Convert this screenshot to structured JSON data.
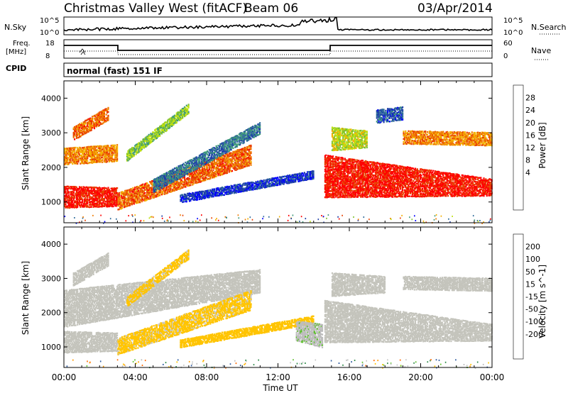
{
  "header": {
    "title": "Christmas Valley West (fitACF)",
    "beam": "Beam 06",
    "date": "03/Apr/2014"
  },
  "status_panels": {
    "nsky_label": "N.Sky",
    "nsky_ticks": [
      "10^5",
      "10^0"
    ],
    "nsky_right_ticks": [
      "10^5",
      "10^0"
    ],
    "nsearch_label": "N.Search",
    "freq_label": [
      "Freq.",
      "[MHz]"
    ],
    "freq_ticks": [
      "18",
      "8"
    ],
    "nave_ticks": [
      "60",
      "0"
    ],
    "nave_label": "Nave",
    "cpid_label": "CPID",
    "cpid_text": "normal (fast) 151 IF"
  },
  "colors": {
    "power_scale": [
      "#0000ff",
      "#1f3fa8",
      "#2f6b9b",
      "#3f9a7a",
      "#7fc22f",
      "#bfe00f",
      "#f4b000",
      "#f07a00",
      "#e84000",
      "#ff0000"
    ],
    "velocity_scale": [
      "#ff0000",
      "#ff6a00",
      "#ff9a00",
      "#ffc400",
      "#c8c8c8",
      "#bdbdbd",
      "#60c030",
      "#2f8a4a",
      "#2c5aa0",
      "#1a2aa8"
    ],
    "ground_scatter": "#c4c4bc"
  },
  "chart_data": [
    {
      "type": "heatmap",
      "name": "power",
      "xlabel": "Time UT",
      "ylabel": "Slant Range [km]",
      "x_ticks": [
        "00:00",
        "04:00",
        "08:00",
        "12:00",
        "16:00",
        "20:00",
        "00:00"
      ],
      "xlim": [
        0,
        24
      ],
      "y_ticks": [
        "1000",
        "2000",
        "3000",
        "4000"
      ],
      "ylim": [
        400,
        4500
      ],
      "colorbar": {
        "label": "Power [dB]",
        "ticks": [
          "28",
          "24",
          "20",
          "16",
          "12",
          "8",
          "4"
        ],
        "range": [
          0,
          30
        ]
      },
      "regions": [
        {
          "t": [
            0,
            3
          ],
          "r_lo": [
            850,
            900
          ],
          "r_hi": [
            1500,
            1450
          ],
          "val": 28
        },
        {
          "t": [
            3,
            10.5
          ],
          "r_lo": [
            800,
            2100
          ],
          "r_hi": [
            1300,
            2700
          ],
          "val": 24
        },
        {
          "t": [
            0,
            3
          ],
          "r_lo": [
            2100,
            2200
          ],
          "r_hi": [
            2600,
            2700
          ],
          "val": 22
        },
        {
          "t": [
            0.5,
            2.5
          ],
          "r_lo": [
            2800,
            3400
          ],
          "r_hi": [
            3200,
            3800
          ],
          "val": 24
        },
        {
          "t": [
            3.5,
            7
          ],
          "r_lo": [
            2200,
            3600
          ],
          "r_hi": [
            2500,
            3900
          ],
          "val": 14
        },
        {
          "t": [
            5,
            11
          ],
          "r_lo": [
            1300,
            3000
          ],
          "r_hi": [
            1700,
            3350
          ],
          "val": 8
        },
        {
          "t": [
            6.5,
            14
          ],
          "r_lo": [
            1000,
            1700
          ],
          "r_hi": [
            1250,
            1950
          ],
          "val": 4
        },
        {
          "t": [
            14.6,
            24
          ],
          "r_lo": [
            1150,
            1200
          ],
          "r_hi": [
            2400,
            1700
          ],
          "val": 28
        },
        {
          "t": [
            15,
            17
          ],
          "r_lo": [
            2500,
            2600
          ],
          "r_hi": [
            3200,
            3100
          ],
          "val": 16
        },
        {
          "t": [
            19,
            24
          ],
          "r_lo": [
            2700,
            2650
          ],
          "r_hi": [
            3100,
            3050
          ],
          "val": 22
        },
        {
          "t": [
            17.5,
            19
          ],
          "r_lo": [
            3300,
            3400
          ],
          "r_hi": [
            3700,
            3800
          ],
          "val": 6
        }
      ]
    },
    {
      "type": "heatmap",
      "name": "velocity",
      "xlabel": "Time UT",
      "ylabel": "Slant Range [km]",
      "x_ticks": [
        "00:00",
        "04:00",
        "08:00",
        "12:00",
        "16:00",
        "20:00",
        "00:00"
      ],
      "xlim": [
        0,
        24
      ],
      "y_ticks": [
        "1000",
        "2000",
        "3000",
        "4000"
      ],
      "ylim": [
        400,
        4500
      ],
      "colorbar": {
        "label": "Velocity [m s^-1]",
        "ticks": [
          "200",
          "100",
          "50",
          "15",
          "-15",
          "-50",
          "-100",
          "-200"
        ],
        "range": [
          -250,
          250
        ]
      },
      "regions": [
        {
          "t": [
            0,
            3
          ],
          "r_lo": [
            850,
            900
          ],
          "r_hi": [
            1500,
            1450
          ],
          "val": "gs"
        },
        {
          "t": [
            0,
            11
          ],
          "r_lo": [
            1600,
            2600
          ],
          "r_hi": [
            2700,
            3300
          ],
          "val": "gs"
        },
        {
          "t": [
            3,
            10.5
          ],
          "r_lo": [
            800,
            2100
          ],
          "r_hi": [
            1300,
            2700
          ],
          "val": -60
        },
        {
          "t": [
            3.5,
            7
          ],
          "r_lo": [
            2200,
            3600
          ],
          "r_hi": [
            2500,
            3900
          ],
          "val": -60
        },
        {
          "t": [
            0.5,
            2.5
          ],
          "r_lo": [
            2800,
            3400
          ],
          "r_hi": [
            3200,
            3800
          ],
          "val": "gs"
        },
        {
          "t": [
            6.5,
            14
          ],
          "r_lo": [
            1000,
            1700
          ],
          "r_hi": [
            1250,
            1950
          ],
          "val": -70
        },
        {
          "t": [
            13,
            14.5
          ],
          "r_lo": [
            1200,
            1000
          ],
          "r_hi": [
            1800,
            1700
          ],
          "val": 40
        },
        {
          "t": [
            14.6,
            24
          ],
          "r_lo": [
            1150,
            1200
          ],
          "r_hi": [
            2400,
            1700
          ],
          "val": "gs"
        },
        {
          "t": [
            15,
            18
          ],
          "r_lo": [
            2500,
            2600
          ],
          "r_hi": [
            3200,
            3100
          ],
          "val": "gs"
        },
        {
          "t": [
            19,
            24
          ],
          "r_lo": [
            2700,
            2650
          ],
          "r_hi": [
            3100,
            3050
          ],
          "val": "gs"
        }
      ]
    }
  ]
}
